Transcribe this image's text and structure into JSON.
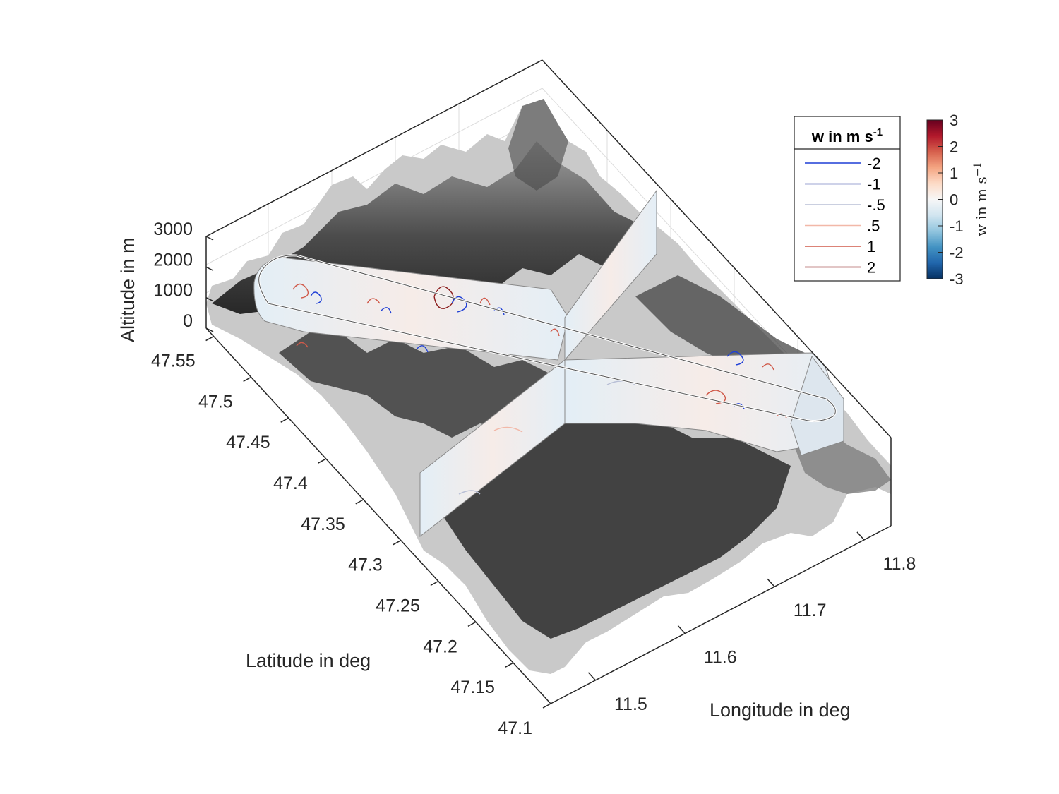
{
  "chart_data": {
    "type": "surface3d",
    "title": "",
    "axes": {
      "longitude": {
        "label": "Longitude in deg",
        "ticks": [
          "11.5",
          "11.6",
          "11.7",
          "11.8"
        ],
        "range": [
          11.45,
          11.83
        ]
      },
      "latitude": {
        "label": "Latitude in deg",
        "ticks": [
          "47.1",
          "47.15",
          "47.2",
          "47.25",
          "47.3",
          "47.35",
          "47.4",
          "47.45",
          "47.5",
          "47.55"
        ],
        "range": [
          47.1,
          47.56
        ]
      },
      "altitude": {
        "label": "Altitude in m",
        "ticks": [
          "0",
          "1000",
          "2000",
          "3000"
        ],
        "range": [
          0,
          3000
        ]
      }
    },
    "grid": true,
    "surface": "terrain",
    "surface_colormap": "gray",
    "legend": {
      "title": "w in m s",
      "title_superscript": "-1",
      "placement": "top-right",
      "entries": [
        {
          "label": "-2",
          "color": "#1f3fd6"
        },
        {
          "label": "-1",
          "color": "#3b4fa8"
        },
        {
          "label": "-.5",
          "color": "#b8bfd6"
        },
        {
          "label": ".5",
          "color": "#f2b8a8"
        },
        {
          "label": "1",
          "color": "#d05a4a"
        },
        {
          "label": "2",
          "color": "#8a1a1a"
        }
      ]
    },
    "colorbar": {
      "label": "w in m s",
      "label_superscript": "−1",
      "ticks": [
        "3",
        "2",
        "1",
        "0",
        "-1",
        "-2",
        "-3"
      ],
      "range": [
        -3,
        3
      ],
      "colormap": [
        "#053061",
        "#2166ac",
        "#4393c3",
        "#92c5de",
        "#d1e5f0",
        "#f7f7f7",
        "#fddbc7",
        "#f4a582",
        "#d6604d",
        "#b2182b",
        "#67001f"
      ]
    }
  }
}
